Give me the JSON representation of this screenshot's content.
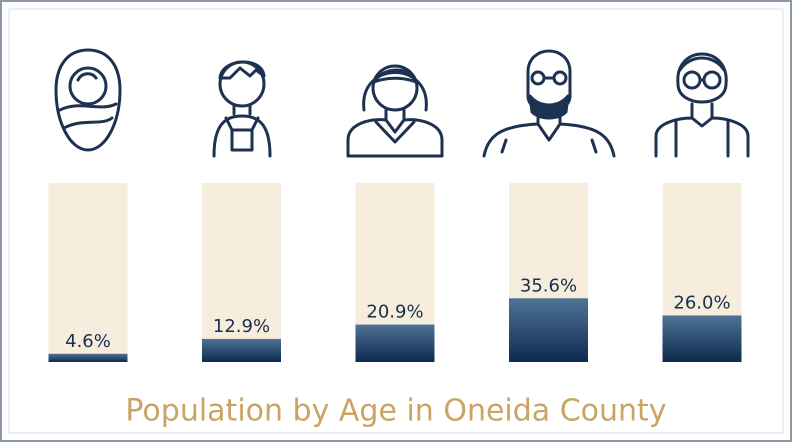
{
  "chart_data": {
    "type": "bar",
    "title": "Population by Age in Oneida County",
    "values": [
      4.6,
      12.9,
      20.9,
      35.6,
      26.0
    ],
    "value_labels": [
      "4.6%",
      "12.9%",
      "20.9%",
      "35.6%",
      "26.0%"
    ],
    "ylim": [
      0,
      100
    ],
    "color": "#0d2a4f",
    "color_top": "#4f7395",
    "track_color": "#f6eddc"
  }
}
